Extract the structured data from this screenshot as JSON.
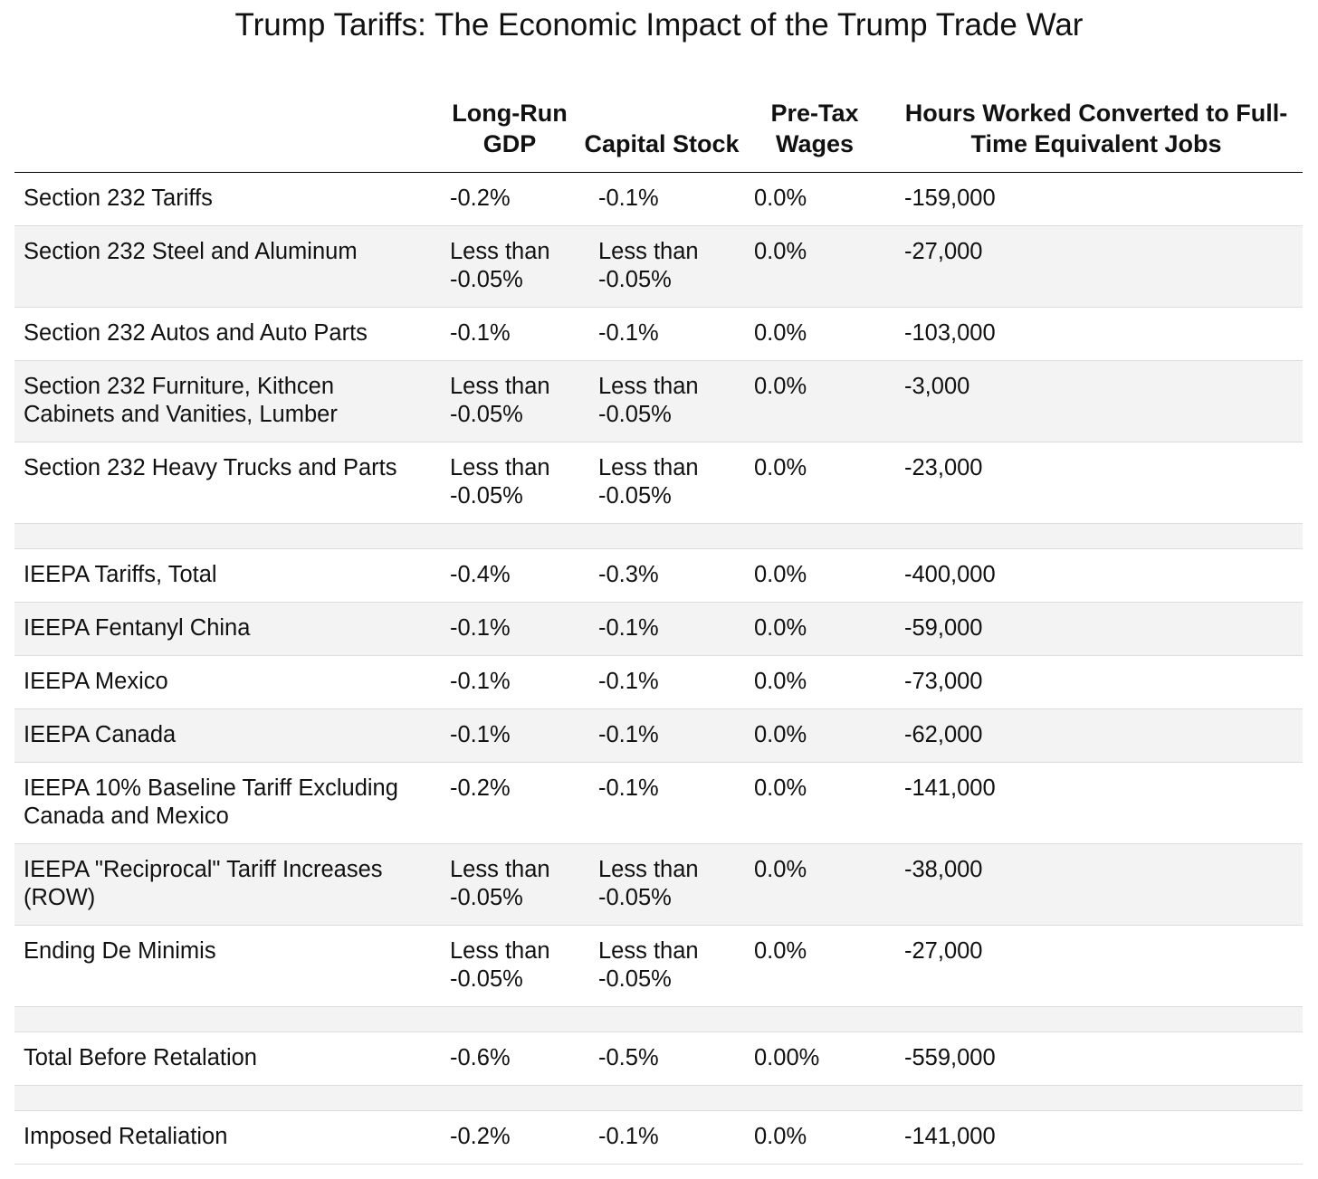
{
  "title": "Trump Tariffs: The Economic Impact of the Trump Trade War",
  "columns": {
    "label": "",
    "gdp": "Long-Run GDP",
    "capital": "Capital Stock",
    "wages": "Pre-Tax Wages",
    "jobs": "Hours Worked Converted to Full-Time Equivalent Jobs"
  },
  "rows": [
    {
      "label": "Section 232 Tariffs",
      "gdp": "-0.2%",
      "capital": "-0.1%",
      "wages": "0.0%",
      "jobs": "-159,000"
    },
    {
      "label": "Section 232 Steel and Aluminum",
      "gdp": "Less than -0.05%",
      "capital": "Less than -0.05%",
      "wages": "0.0%",
      "jobs": "-27,000"
    },
    {
      "label": "Section 232 Autos and Auto Parts",
      "gdp": "-0.1%",
      "capital": "-0.1%",
      "wages": "0.0%",
      "jobs": "-103,000"
    },
    {
      "label": "Section 232 Furniture, Kithcen Cabinets and Vanities, Lumber",
      "gdp": "Less than -0.05%",
      "capital": "Less than -0.05%",
      "wages": "0.0%",
      "jobs": "-3,000"
    },
    {
      "label": "Section 232 Heavy Trucks and Parts",
      "gdp": "Less than -0.05%",
      "capital": "Less than -0.05%",
      "wages": "0.0%",
      "jobs": "-23,000"
    },
    {
      "spacer": true
    },
    {
      "label": "IEEPA Tariffs, Total",
      "gdp": "-0.4%",
      "capital": "-0.3%",
      "wages": "0.0%",
      "jobs": "-400,000"
    },
    {
      "label": "IEEPA Fentanyl China",
      "gdp": "-0.1%",
      "capital": "-0.1%",
      "wages": "0.0%",
      "jobs": "-59,000"
    },
    {
      "label": "IEEPA Mexico",
      "gdp": "-0.1%",
      "capital": "-0.1%",
      "wages": "0.0%",
      "jobs": "-73,000"
    },
    {
      "label": "IEEPA Canada",
      "gdp": "-0.1%",
      "capital": "-0.1%",
      "wages": "0.0%",
      "jobs": "-62,000"
    },
    {
      "label": "IEEPA 10% Baseline Tariff Excluding Canada and Mexico",
      "gdp": "-0.2%",
      "capital": "-0.1%",
      "wages": "0.0%",
      "jobs": "-141,000"
    },
    {
      "label": "IEEPA \"Reciprocal\" Tariff Increases (ROW)",
      "gdp": "Less than -0.05%",
      "capital": "Less than -0.05%",
      "wages": "0.0%",
      "jobs": "-38,000"
    },
    {
      "label": "Ending De Minimis",
      "gdp": "Less than -0.05%",
      "capital": "Less than -0.05%",
      "wages": "0.0%",
      "jobs": "-27,000"
    },
    {
      "spacer": true
    },
    {
      "label": "Total Before Retalation",
      "gdp": "-0.6%",
      "capital": "-0.5%",
      "wages": "0.00%",
      "jobs": "-559,000"
    },
    {
      "spacer": true
    },
    {
      "label": "Imposed Retaliation",
      "gdp": "-0.2%",
      "capital": "-0.1%",
      "wages": "0.0%",
      "jobs": "-141,000"
    }
  ]
}
